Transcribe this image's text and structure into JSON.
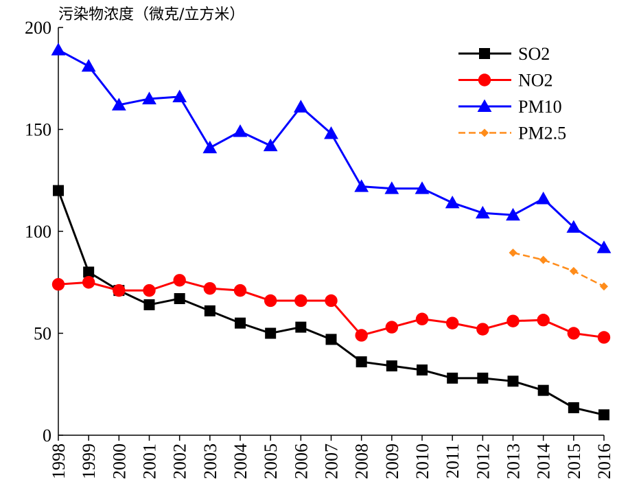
{
  "chart_data": {
    "type": "line",
    "title": "污染物浓度（微克/立方米）",
    "categories": [
      "1998",
      "1999",
      "2000",
      "2001",
      "2002",
      "2003",
      "2004",
      "2005",
      "2006",
      "2007",
      "2008",
      "2009",
      "2010",
      "2011",
      "2012",
      "2013",
      "2014",
      "2015",
      "2016"
    ],
    "series": [
      {
        "name": "SO2",
        "color": "#000000",
        "marker": "square",
        "values": [
          120,
          80,
          71,
          64,
          67,
          61,
          55,
          50,
          53,
          47,
          36,
          34,
          32,
          28,
          28,
          26.5,
          22,
          13.5,
          10
        ]
      },
      {
        "name": "NO2",
        "color": "#ff0000",
        "marker": "circle",
        "values": [
          74,
          75,
          71,
          71,
          76,
          72,
          71,
          66,
          66,
          66,
          49,
          53,
          57,
          55,
          52,
          56,
          56.5,
          50,
          48
        ]
      },
      {
        "name": "PM10",
        "color": "#0000ff",
        "marker": "triangle",
        "values": [
          189,
          181,
          162,
          165,
          166,
          141,
          149,
          142,
          161,
          148,
          122,
          121,
          121,
          114,
          109,
          108,
          116,
          102,
          92
        ]
      },
      {
        "name": "PM2.5",
        "color": "#ff8c1a",
        "marker": "diamond",
        "dashed": true,
        "values": [
          null,
          null,
          null,
          null,
          null,
          null,
          null,
          null,
          null,
          null,
          null,
          null,
          null,
          null,
          null,
          89.5,
          86,
          80.5,
          73
        ]
      }
    ],
    "ylim": [
      0,
      200
    ],
    "yticks": [
      0,
      50,
      100,
      150,
      200
    ],
    "legend": "upper right"
  }
}
